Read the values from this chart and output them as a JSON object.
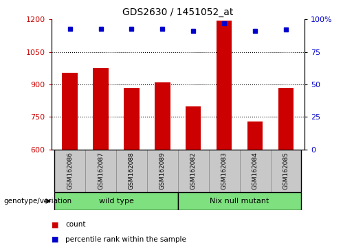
{
  "title": "GDS2630 / 1451052_at",
  "samples": [
    "GSM162086",
    "GSM162087",
    "GSM162088",
    "GSM162089",
    "GSM162082",
    "GSM162083",
    "GSM162084",
    "GSM162085"
  ],
  "counts": [
    955,
    975,
    885,
    910,
    800,
    1195,
    730,
    885
  ],
  "percentile_ranks": [
    93,
    93,
    93,
    93,
    91,
    97,
    91,
    92
  ],
  "groups": [
    {
      "label": "wild type",
      "span": [
        0,
        3
      ],
      "color": "#7EE07E"
    },
    {
      "label": "Nix null mutant",
      "span": [
        4,
        7
      ],
      "color": "#7EE07E"
    }
  ],
  "bar_color": "#CC0000",
  "dot_color": "#0000CC",
  "ylim_left": [
    600,
    1200
  ],
  "yticks_left": [
    600,
    750,
    900,
    1050,
    1200
  ],
  "ylim_right": [
    0,
    100
  ],
  "yticks_right": [
    0,
    25,
    50,
    75,
    100
  ],
  "ytick_right_labels": [
    "0",
    "25",
    "50",
    "75",
    "100%"
  ],
  "grid_values": [
    750,
    900,
    1050
  ],
  "background_color": "#ffffff",
  "tick_label_color_left": "#CC0000",
  "tick_label_color_right": "#0000CC",
  "legend_count_color": "#CC0000",
  "legend_pct_color": "#0000CC",
  "genotype_label": "genotype/variation",
  "subplot_bg": "#c8c8c8",
  "bar_width": 0.5
}
